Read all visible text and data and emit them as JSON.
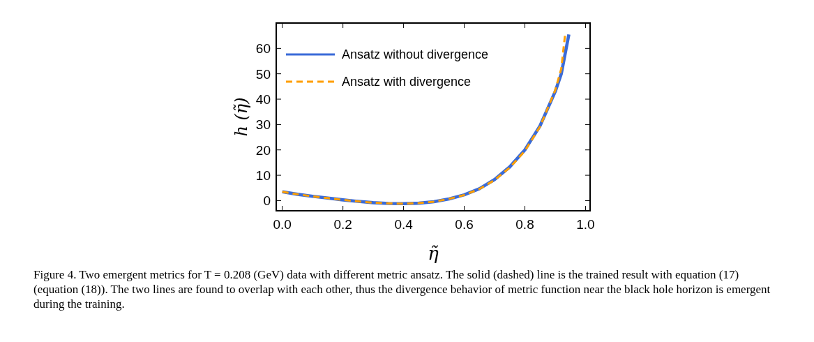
{
  "chart_data": {
    "type": "line",
    "xlabel": "η̃",
    "ylabel": "h (η̃)",
    "xlim": [
      -0.02,
      1.015
    ],
    "ylim": [
      -4,
      70
    ],
    "xticks": [
      {
        "value": 0,
        "label": "0.0"
      },
      0.2,
      0.4,
      0.6,
      0.8,
      {
        "value": 1,
        "label": "1.0"
      }
    ],
    "yticks": [
      0,
      10,
      20,
      30,
      40,
      50,
      60
    ],
    "legend": "top left",
    "grid": false,
    "series": [
      {
        "name": "Ansatz without divergence",
        "color": "#3a6bd8",
        "line_style": "solid",
        "x": [
          0,
          0.05,
          0.1,
          0.15,
          0.2,
          0.25,
          0.3,
          0.35,
          0.4,
          0.45,
          0.5,
          0.55,
          0.6,
          0.65,
          0.7,
          0.75,
          0.8,
          0.85,
          0.9,
          0.92,
          0.945
        ],
        "values": [
          3.5,
          2.5,
          1.7,
          1,
          0.3,
          -0.3,
          -0.8,
          -1.1,
          -1.2,
          -1,
          -0.4,
          0.7,
          2.3,
          4.7,
          8.3,
          13.3,
          20,
          29.5,
          43,
          50,
          65.5
        ]
      },
      {
        "name": "Ansatz with divergence",
        "color": "#ff9f00",
        "line_style": "dashed",
        "x": [
          0,
          0.05,
          0.1,
          0.15,
          0.2,
          0.25,
          0.3,
          0.35,
          0.4,
          0.45,
          0.5,
          0.55,
          0.6,
          0.65,
          0.7,
          0.75,
          0.8,
          0.85,
          0.9,
          0.92,
          0.933
        ],
        "values": [
          3.5,
          2.5,
          1.7,
          1,
          0.3,
          -0.3,
          -0.8,
          -1.1,
          -1.2,
          -1,
          -0.4,
          0.7,
          2.2,
          4.6,
          8.1,
          13,
          19.6,
          29.2,
          43.5,
          52,
          66
        ]
      }
    ],
    "annotations": [
      "Figure 4. Two emergent metrics for T = 0.208 (GeV) data with different metric ansatz. The solid (dashed) line is the trained result with equation (17) (equation (18)). The two lines are found to overlap with each other, thus the divergence behavior of metric function near the black hole horizon is emergent during the training."
    ]
  }
}
